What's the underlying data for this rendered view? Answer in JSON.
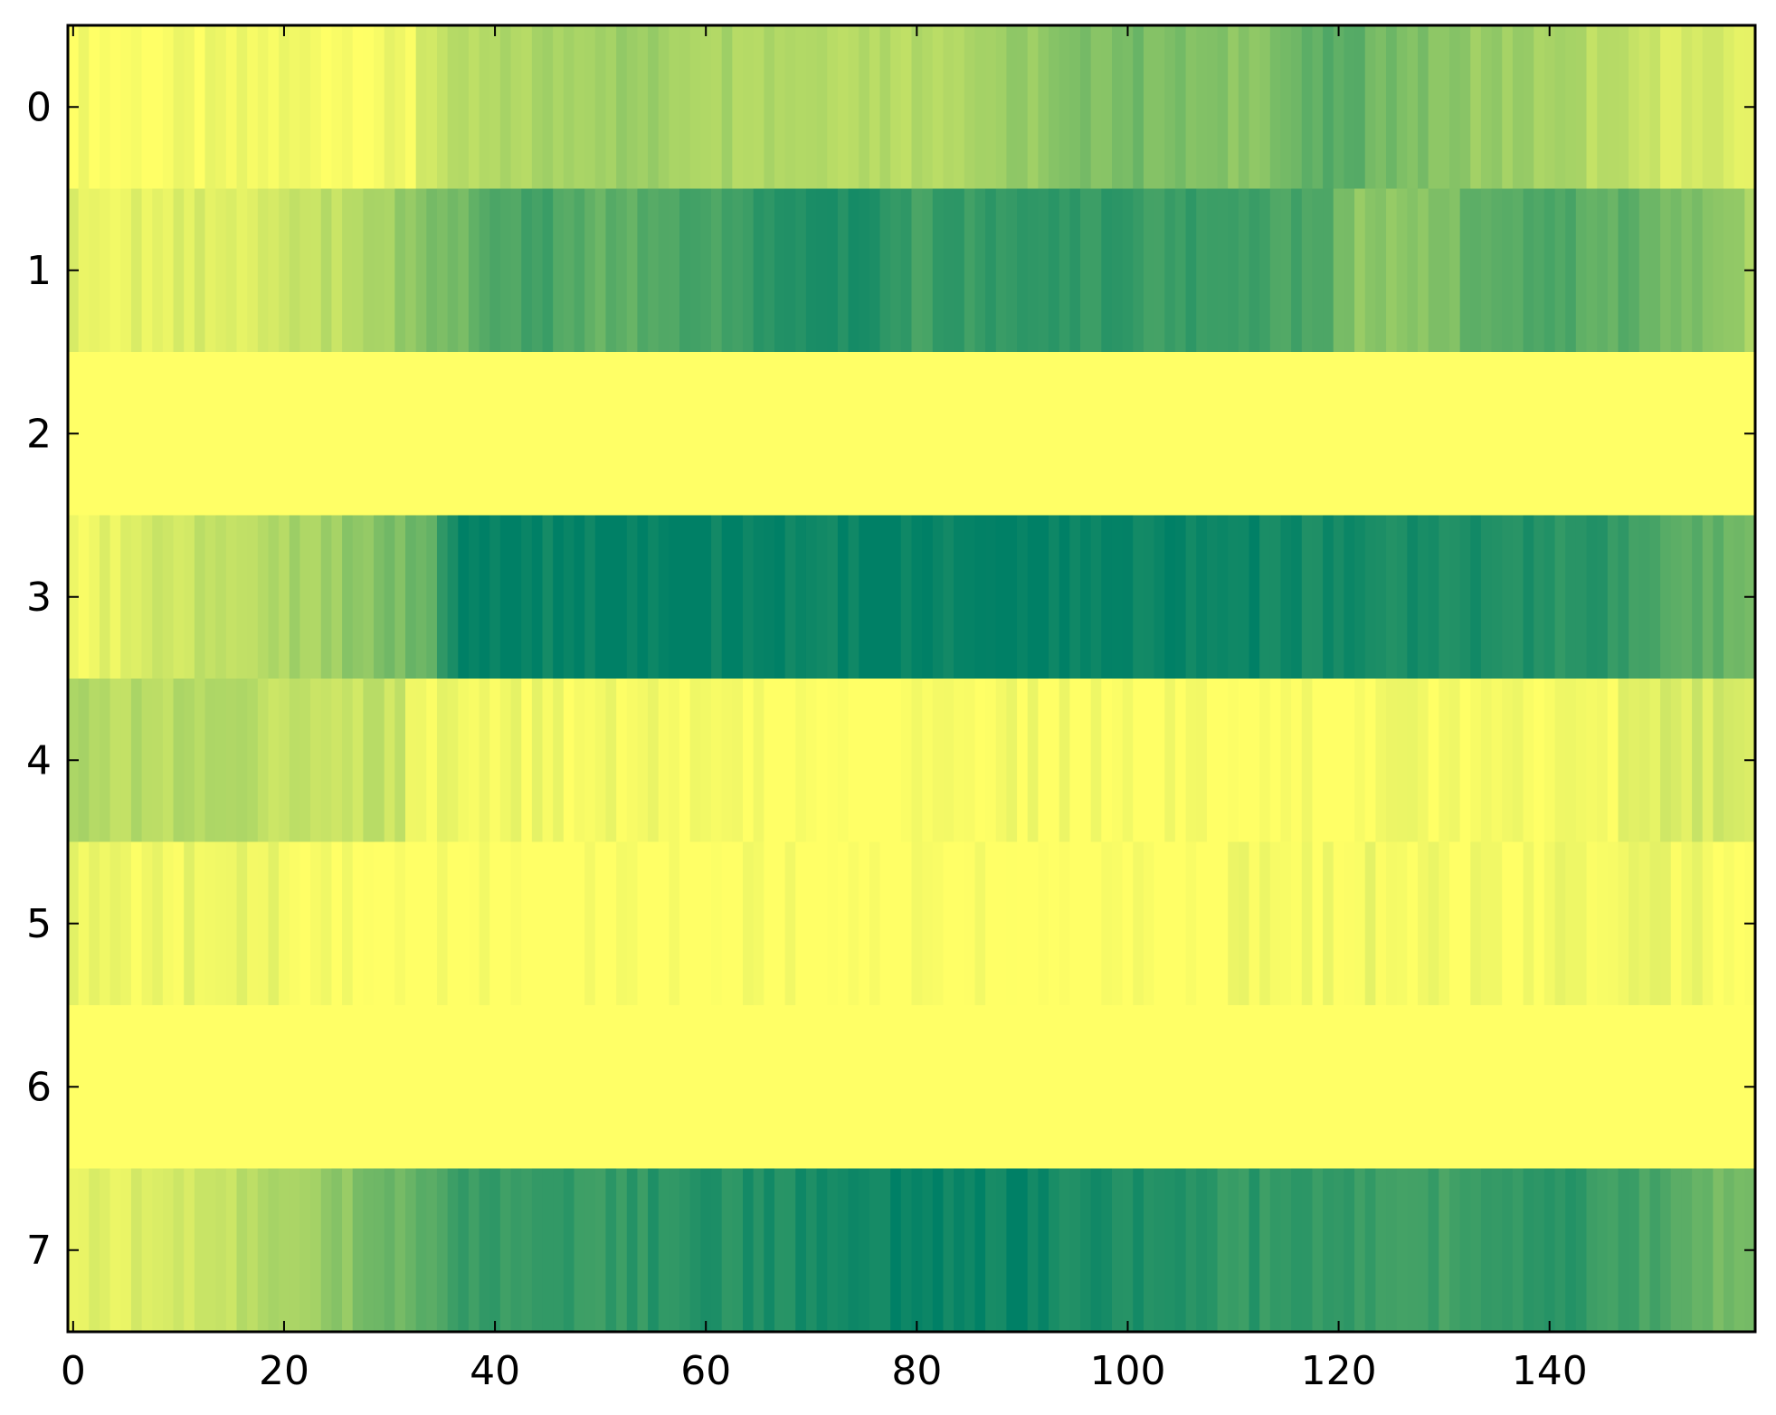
{
  "chart_data": {
    "type": "heatmap",
    "title": "",
    "xlabel": "",
    "ylabel": "",
    "colormap": "summer_r",
    "color_low": "#ffff66",
    "color_high": "#008066",
    "value_range": [
      0,
      1
    ],
    "xlim": [
      -0.5,
      159.5
    ],
    "ylim": [
      7.5,
      -0.5
    ],
    "grid": false,
    "n_columns": 160,
    "x_tick_values": [
      0,
      20,
      40,
      60,
      80,
      100,
      120,
      140
    ],
    "x_tick_labels": [
      "0",
      "20",
      "40",
      "60",
      "80",
      "100",
      "120",
      "140"
    ],
    "y_tick_values": [
      0,
      1,
      2,
      3,
      4,
      5,
      6,
      7
    ],
    "y_tick_labels": [
      "0",
      "1",
      "2",
      "3",
      "4",
      "5",
      "6",
      "7"
    ],
    "rows": [
      {
        "row": 0,
        "profile": [
          [
            0,
            0.02
          ],
          [
            10,
            0.02
          ],
          [
            20,
            0.05
          ],
          [
            32,
            0.04
          ],
          [
            33,
            0.2
          ],
          [
            40,
            0.28
          ],
          [
            50,
            0.4
          ],
          [
            60,
            0.35
          ],
          [
            70,
            0.32
          ],
          [
            80,
            0.3
          ],
          [
            90,
            0.4
          ],
          [
            100,
            0.55
          ],
          [
            110,
            0.45
          ],
          [
            120,
            0.65
          ],
          [
            130,
            0.45
          ],
          [
            140,
            0.35
          ],
          [
            150,
            0.18
          ],
          [
            159,
            0.12
          ]
        ]
      },
      {
        "row": 1,
        "profile": [
          [
            0,
            0.1
          ],
          [
            10,
            0.12
          ],
          [
            20,
            0.18
          ],
          [
            28,
            0.3
          ],
          [
            36,
            0.55
          ],
          [
            44,
            0.75
          ],
          [
            50,
            0.6
          ],
          [
            60,
            0.72
          ],
          [
            68,
            0.88
          ],
          [
            75,
            0.9
          ],
          [
            80,
            0.75
          ],
          [
            90,
            0.82
          ],
          [
            100,
            0.78
          ],
          [
            110,
            0.75
          ],
          [
            118,
            0.7
          ],
          [
            122,
            0.45
          ],
          [
            130,
            0.5
          ],
          [
            135,
            0.7
          ],
          [
            145,
            0.65
          ],
          [
            152,
            0.55
          ],
          [
            159,
            0.35
          ]
        ]
      },
      {
        "row": 2,
        "profile": [
          [
            0,
            0.0
          ],
          [
            159,
            0.0
          ]
        ]
      },
      {
        "row": 3,
        "profile": [
          [
            0,
            0.05
          ],
          [
            5,
            0.12
          ],
          [
            15,
            0.25
          ],
          [
            25,
            0.4
          ],
          [
            34,
            0.6
          ],
          [
            36,
            0.95
          ],
          [
            50,
            0.98
          ],
          [
            70,
            0.97
          ],
          [
            90,
            0.99
          ],
          [
            110,
            0.95
          ],
          [
            120,
            0.9
          ],
          [
            130,
            0.88
          ],
          [
            143,
            0.85
          ],
          [
            150,
            0.7
          ],
          [
            159,
            0.55
          ]
        ]
      },
      {
        "row": 4,
        "profile": [
          [
            0,
            0.3
          ],
          [
            10,
            0.28
          ],
          [
            20,
            0.25
          ],
          [
            31,
            0.22
          ],
          [
            32,
            0.06
          ],
          [
            40,
            0.07
          ],
          [
            55,
            0.03
          ],
          [
            60,
            0.0
          ],
          [
            80,
            0.0
          ],
          [
            82,
            0.05
          ],
          [
            95,
            0.03
          ],
          [
            100,
            0.0
          ],
          [
            120,
            0.02
          ],
          [
            145,
            0.04
          ],
          [
            150,
            0.15
          ],
          [
            159,
            0.18
          ]
        ]
      },
      {
        "row": 5,
        "profile": [
          [
            0,
            0.07
          ],
          [
            10,
            0.07
          ],
          [
            19,
            0.06
          ],
          [
            20,
            0.0
          ],
          [
            100,
            0.0
          ],
          [
            106,
            0.02
          ],
          [
            120,
            0.05
          ],
          [
            130,
            0.04
          ],
          [
            150,
            0.05
          ],
          [
            159,
            0.04
          ]
        ]
      },
      {
        "row": 6,
        "profile": [
          [
            0,
            0.0
          ],
          [
            159,
            0.0
          ]
        ]
      },
      {
        "row": 7,
        "profile": [
          [
            0,
            0.1
          ],
          [
            10,
            0.18
          ],
          [
            20,
            0.3
          ],
          [
            30,
            0.55
          ],
          [
            38,
            0.78
          ],
          [
            50,
            0.8
          ],
          [
            60,
            0.85
          ],
          [
            70,
            0.9
          ],
          [
            80,
            0.98
          ],
          [
            90,
            0.95
          ],
          [
            100,
            0.88
          ],
          [
            110,
            0.82
          ],
          [
            120,
            0.8
          ],
          [
            130,
            0.75
          ],
          [
            140,
            0.85
          ],
          [
            150,
            0.7
          ],
          [
            159,
            0.5
          ]
        ]
      }
    ]
  }
}
